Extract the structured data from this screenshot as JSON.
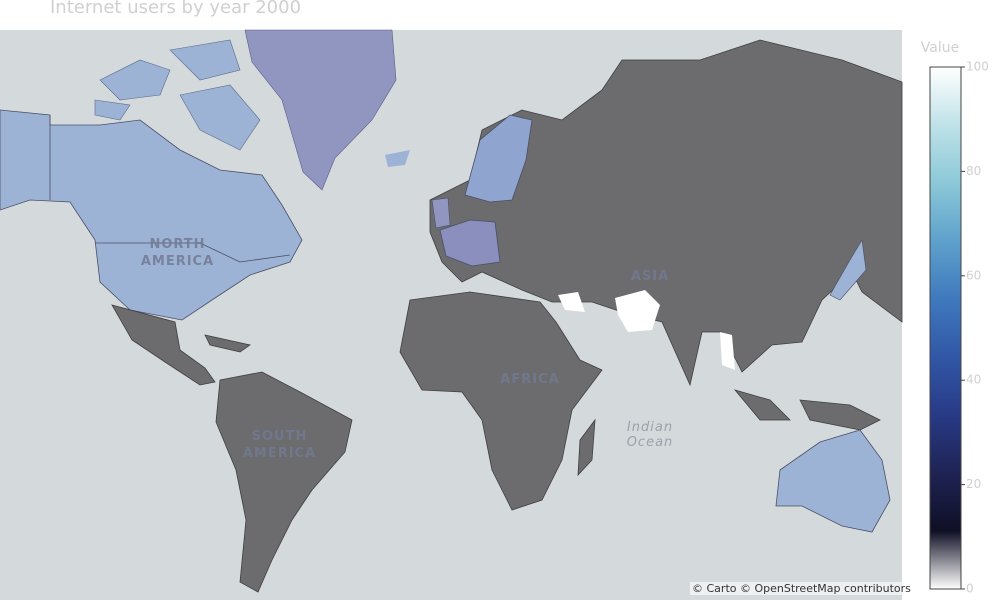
{
  "chart_data": {
    "type": "choropleth",
    "title": "Internet users by year 2000",
    "colorbar_title": "Value",
    "ylim": [
      0,
      100
    ],
    "yticks": [
      0,
      20,
      40,
      60,
      80,
      100
    ],
    "colorscale": [
      "#ffffff",
      "#0f0f25",
      "#1f2354",
      "#283a86",
      "#3157a6",
      "#3f79bd",
      "#5ea1cc",
      "#8cc8d8",
      "#bfe2e8",
      "#ffffff"
    ],
    "map_labels": [
      "NORTH AMERICA",
      "SOUTH AMERICA",
      "AFRICA",
      "ASIA"
    ],
    "ocean_label": "Indian Ocean",
    "attribution": "© Carto © OpenStreetMap contributors"
  }
}
